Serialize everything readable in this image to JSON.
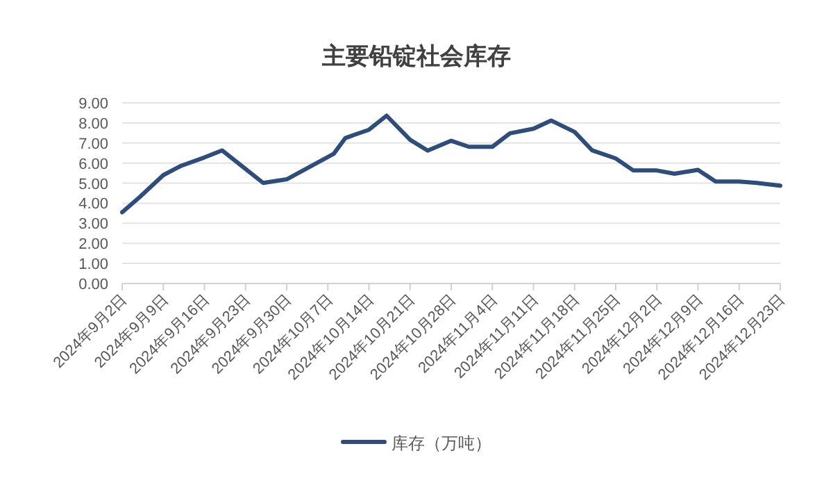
{
  "chart_data": {
    "type": "line",
    "title": "主要铅锭社会库存",
    "x": [
      "2024-09-02",
      "2024-09-05",
      "2024-09-09",
      "2024-09-12",
      "2024-09-16",
      "2024-09-19",
      "2024-09-26",
      "2024-09-30",
      "2024-10-08",
      "2024-10-10",
      "2024-10-14",
      "2024-10-17",
      "2024-10-21",
      "2024-10-24",
      "2024-10-28",
      "2024-10-31",
      "2024-11-04",
      "2024-11-07",
      "2024-11-11",
      "2024-11-14",
      "2024-11-18",
      "2024-11-21",
      "2024-11-25",
      "2024-11-28",
      "2024-12-02",
      "2024-12-05",
      "2024-12-09",
      "2024-12-12",
      "2024-12-16",
      "2024-12-19",
      "2024-12-23"
    ],
    "series": [
      {
        "name": "库存（万吨）",
        "color": "#2e4d7b",
        "values": [
          3.55,
          4.31,
          5.4,
          5.86,
          6.28,
          6.63,
          5.01,
          5.19,
          6.46,
          7.25,
          7.66,
          8.36,
          7.16,
          6.62,
          7.11,
          6.81,
          6.81,
          7.48,
          7.71,
          8.12,
          7.55,
          6.63,
          6.23,
          5.63,
          5.63,
          5.47,
          5.66,
          5.08,
          5.08,
          5.01,
          4.87
        ]
      }
    ],
    "xlim": [
      "2024-09-02",
      "2024-12-23"
    ],
    "xticks": [
      {
        "value": "2024-09-02",
        "label": "2024年9月2日"
      },
      {
        "value": "2024-09-09",
        "label": "2024年9月9日"
      },
      {
        "value": "2024-09-16",
        "label": "2024年9月16日"
      },
      {
        "value": "2024-09-23",
        "label": "2024年9月23日"
      },
      {
        "value": "2024-09-30",
        "label": "2024年9月30日"
      },
      {
        "value": "2024-10-07",
        "label": "2024年10月7日"
      },
      {
        "value": "2024-10-14",
        "label": "2024年10月14日"
      },
      {
        "value": "2024-10-21",
        "label": "2024年10月21日"
      },
      {
        "value": "2024-10-28",
        "label": "2024年10月28日"
      },
      {
        "value": "2024-11-04",
        "label": "2024年11月4日"
      },
      {
        "value": "2024-11-11",
        "label": "2024年11月11日"
      },
      {
        "value": "2024-11-18",
        "label": "2024年11月18日"
      },
      {
        "value": "2024-11-25",
        "label": "2024年11月25日"
      },
      {
        "value": "2024-12-02",
        "label": "2024年12月2日"
      },
      {
        "value": "2024-12-09",
        "label": "2024年12月9日"
      },
      {
        "value": "2024-12-16",
        "label": "2024年12月16日"
      },
      {
        "value": "2024-12-23",
        "label": "2024年12月23日"
      }
    ],
    "ylim": [
      0,
      9
    ],
    "yticks": [
      {
        "value": 0,
        "label": "0.00"
      },
      {
        "value": 1,
        "label": "1.00"
      },
      {
        "value": 2,
        "label": "2.00"
      },
      {
        "value": 3,
        "label": "3.00"
      },
      {
        "value": 4,
        "label": "4.00"
      },
      {
        "value": 5,
        "label": "5.00"
      },
      {
        "value": 6,
        "label": "6.00"
      },
      {
        "value": 7,
        "label": "7.00"
      },
      {
        "value": 8,
        "label": "8.00"
      },
      {
        "value": 9,
        "label": "9.00"
      }
    ],
    "grid": "y",
    "legend": "bottom"
  }
}
